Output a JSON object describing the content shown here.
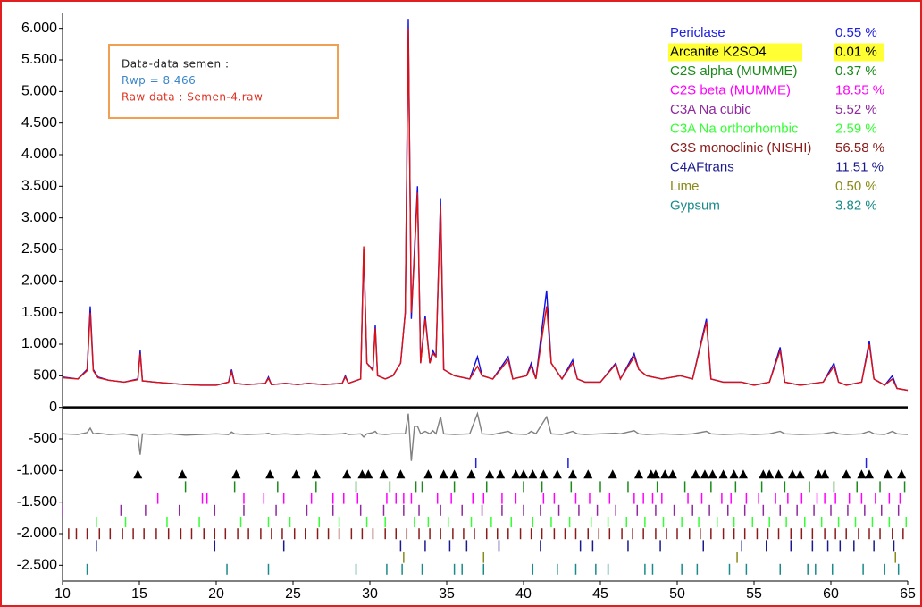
{
  "chart_data": {
    "type": "line",
    "annotations": [
      {
        "text": "Data-data semen :",
        "color": "#222222"
      },
      {
        "text": "Rwp =  8.466",
        "color": "#3b86c8"
      },
      {
        "text": "Raw data : Semen-4.raw",
        "color": "#e03020"
      }
    ],
    "x": [
      10,
      11,
      11.6,
      11.8,
      12.0,
      12.3,
      13,
      14,
      14.9,
      15.05,
      15.2,
      16,
      17,
      18,
      19,
      20,
      20.8,
      21.0,
      21.2,
      22,
      23.2,
      23.4,
      23.6,
      24.5,
      25.3,
      26,
      27,
      28.2,
      28.4,
      28.6,
      29.4,
      29.6,
      29.8,
      30.2,
      30.35,
      30.5,
      31.0,
      31.5,
      32.0,
      32.3,
      32.5,
      32.7,
      32.9,
      33.1,
      33.3,
      33.6,
      33.9,
      34.1,
      34.3,
      34.6,
      34.8,
      35.5,
      36.5,
      37.0,
      37.3,
      38,
      39.0,
      39.3,
      40.2,
      40.5,
      40.8,
      41.5,
      41.8,
      42.5,
      43.2,
      43.5,
      44,
      45,
      46.0,
      46.3,
      47.2,
      47.5,
      48,
      49,
      50.2,
      51,
      51.9,
      52.2,
      53,
      54.2,
      55,
      56.0,
      56.7,
      57.0,
      58,
      59.5,
      60.2,
      60.5,
      61,
      62.0,
      62.5,
      62.8,
      63.5,
      64.0,
      64.3,
      65
    ],
    "series": [
      {
        "name": "Observed",
        "color": "#1010e0",
        "values": [
          480,
          450,
          600,
          1600,
          600,
          480,
          430,
          400,
          450,
          900,
          420,
          400,
          380,
          360,
          350,
          350,
          400,
          600,
          380,
          360,
          380,
          480,
          360,
          380,
          360,
          380,
          360,
          380,
          500,
          380,
          450,
          2500,
          700,
          600,
          1300,
          500,
          450,
          500,
          700,
          1500,
          6150,
          1400,
          2500,
          3500,
          700,
          1450,
          700,
          900,
          800,
          3300,
          600,
          500,
          450,
          800,
          500,
          450,
          800,
          450,
          500,
          700,
          450,
          1850,
          700,
          450,
          750,
          450,
          400,
          400,
          700,
          450,
          850,
          600,
          500,
          450,
          500,
          450,
          1400,
          450,
          400,
          400,
          350,
          400,
          950,
          400,
          350,
          400,
          700,
          400,
          350,
          400,
          1050,
          450,
          350,
          500,
          300,
          270
        ]
      },
      {
        "name": "Calculated",
        "color": "#e01010",
        "values": [
          470,
          450,
          580,
          1500,
          580,
          470,
          430,
          400,
          440,
          850,
          420,
          400,
          380,
          360,
          350,
          350,
          400,
          560,
          380,
          360,
          380,
          460,
          360,
          380,
          360,
          380,
          360,
          380,
          480,
          380,
          450,
          2550,
          700,
          580,
          1250,
          500,
          450,
          500,
          700,
          1500,
          6000,
          1500,
          2400,
          3400,
          700,
          1400,
          700,
          850,
          800,
          3200,
          600,
          500,
          450,
          650,
          500,
          450,
          750,
          450,
          500,
          650,
          450,
          1600,
          700,
          450,
          700,
          450,
          400,
          400,
          680,
          450,
          800,
          600,
          500,
          450,
          500,
          450,
          1350,
          450,
          400,
          400,
          350,
          400,
          900,
          400,
          350,
          400,
          650,
          400,
          350,
          400,
          1000,
          450,
          350,
          450,
          300,
          270
        ]
      },
      {
        "name": "Difference",
        "color": "#808080",
        "values": [
          -420,
          -430,
          -400,
          -330,
          -420,
          -410,
          -430,
          -420,
          -450,
          -750,
          -420,
          -430,
          -420,
          -440,
          -430,
          -420,
          -430,
          -390,
          -420,
          -430,
          -420,
          -410,
          -430,
          -420,
          -430,
          -420,
          -430,
          -420,
          -410,
          -430,
          -420,
          -470,
          -420,
          -400,
          -380,
          -420,
          -430,
          -420,
          -420,
          -420,
          -100,
          -850,
          -300,
          -300,
          -420,
          -380,
          -420,
          -370,
          -420,
          -150,
          -420,
          -430,
          -420,
          -100,
          -420,
          -430,
          -380,
          -420,
          -430,
          -380,
          -420,
          -150,
          -420,
          -430,
          -380,
          -420,
          -430,
          -420,
          -410,
          -420,
          -370,
          -420,
          -430,
          -420,
          -430,
          -420,
          -380,
          -420,
          -430,
          -420,
          -430,
          -420,
          -380,
          -420,
          -430,
          -420,
          -390,
          -420,
          -430,
          -420,
          -380,
          -420,
          -430,
          -380,
          -420,
          -430
        ]
      }
    ],
    "phases": [
      {
        "name": "Periclase",
        "color": "#2020e0",
        "weight_percent": 0.55,
        "weight_label": "0.55 %",
        "reflections": [
          36.9,
          42.9,
          62.3
        ]
      },
      {
        "name": "Arcanite K2SO4",
        "color": "#000000",
        "weight_percent": 0.01,
        "weight_label": "0.01 %",
        "highlight": true,
        "marker": "triangle",
        "reflections": [
          14.9,
          17.8,
          21.3,
          23.5,
          25.2,
          26.5,
          28.5,
          29.5,
          29.9,
          30.9,
          32.0,
          33.8,
          34.8,
          35.5,
          36.6,
          37.8,
          38.5,
          39.5,
          40.0,
          40.6,
          41.3,
          42.2,
          43.2,
          44.2,
          45.8,
          47.5,
          48.3,
          48.6,
          49.2,
          49.7,
          51.2,
          51.8,
          52.3,
          53.0,
          53.7,
          54.3,
          55.6,
          56.0,
          56.6,
          57.5,
          58.0,
          59.2,
          59.6,
          61.0,
          62.0,
          62.5,
          63.7,
          64.6
        ]
      },
      {
        "name": "C2S alpha (MUMME)",
        "color": "#1a8a1a",
        "weight_percent": 0.37,
        "weight_label": "0.37 %",
        "reflections": [
          18.0,
          21.2,
          24.0,
          26.5,
          29.1,
          31.3,
          33.0,
          33.4,
          35.5,
          37.6,
          40.0,
          41.2,
          43.1,
          45.0,
          46.8,
          48.7,
          50.5,
          52.2,
          53.8,
          55.5,
          57.0,
          58.6,
          60.2,
          61.7,
          63.2,
          64.8
        ]
      },
      {
        "name": "C2S beta (MUMME)",
        "color": "#ff00ff",
        "weight_percent": 18.55,
        "weight_label": "18.55 %",
        "reflections": [
          16.2,
          19.1,
          19.4,
          21.8,
          23.1,
          24.4,
          26.2,
          27.6,
          28.3,
          29.2,
          31.1,
          31.7,
          32.2,
          32.7,
          34.4,
          35.3,
          36.7,
          37.4,
          38.6,
          39.5,
          41.3,
          42.0,
          43.4,
          44.3,
          45.6,
          47.2,
          47.8,
          48.4,
          49.0,
          50.7,
          51.6,
          52.9,
          53.5,
          54.5,
          55.3,
          56.4,
          57.2,
          58.1,
          59.1,
          59.6,
          60.3,
          61.2,
          62.0,
          62.9,
          63.8,
          64.5
        ]
      },
      {
        "name": "C3A Na cubic",
        "color": "#8e2a9e",
        "weight_percent": 5.52,
        "weight_label": "5.52 %",
        "reflections": [
          10.0,
          13.8,
          15.4,
          17.6,
          19.9,
          21.8,
          23.9,
          25.9,
          27.6,
          29.4,
          30.9,
          32.2,
          33.2,
          34.6,
          36.0,
          37.3,
          38.6,
          40.0,
          41.1,
          42.3,
          43.6,
          44.8,
          46.0,
          47.4,
          48.6,
          49.8,
          51.0,
          52.1,
          53.3,
          54.4,
          55.6,
          56.7,
          57.8,
          58.9,
          60.0,
          61.1,
          62.2,
          63.3,
          64.4
        ]
      },
      {
        "name": "C3A Na orthorhombic",
        "color": "#33ff33",
        "weight_percent": 2.59,
        "weight_label": "2.59 %",
        "reflections": [
          12.2,
          14.1,
          16.8,
          18.9,
          21.6,
          23.4,
          24.8,
          26.7,
          28.0,
          29.8,
          31.0,
          32.9,
          33.8,
          35.1,
          36.6,
          37.9,
          39.2,
          40.6,
          41.8,
          43.0,
          44.4,
          45.5,
          46.7,
          47.9,
          49.1,
          50.3,
          51.4,
          52.6,
          53.7,
          54.9,
          56.0,
          57.1,
          58.3,
          59.4,
          60.5,
          61.6,
          62.7,
          63.8,
          64.9
        ]
      },
      {
        "name": "C3S monoclinic (NISHI)",
        "color": "#8b1a1a",
        "weight_percent": 56.58,
        "weight_label": "56.58 %",
        "reflections": [
          10.4,
          10.9,
          11.6,
          12.4,
          13.1,
          13.9,
          14.6,
          15.3,
          16.1,
          16.9,
          17.7,
          18.4,
          19.2,
          19.9,
          20.6,
          21.4,
          22.1,
          22.9,
          23.6,
          24.3,
          25.1,
          25.8,
          26.6,
          27.3,
          28.0,
          28.8,
          29.5,
          30.2,
          31.0,
          31.7,
          32.4,
          33.2,
          33.9,
          34.6,
          35.4,
          36.1,
          36.8,
          37.6,
          38.3,
          39.0,
          39.8,
          40.5,
          41.2,
          42.0,
          42.7,
          43.4,
          44.2,
          44.9,
          45.6,
          46.4,
          47.1,
          47.8,
          48.6,
          49.3,
          50.0,
          50.8,
          51.5,
          52.2,
          53.0,
          53.7,
          54.4,
          55.2,
          55.9,
          56.6,
          57.4,
          58.1,
          58.8,
          59.6,
          60.3,
          61.0,
          61.8,
          62.5,
          63.2,
          64.0,
          64.7
        ]
      },
      {
        "name": "C4AFtrans",
        "color": "#1a1a8e",
        "weight_percent": 11.51,
        "weight_label": "11.51 %",
        "reflections": [
          12.2,
          19.9,
          24.4,
          32.0,
          33.6,
          35.2,
          36.3,
          38.4,
          41.1,
          43.7,
          44.5,
          46.8,
          48.9,
          51.7,
          54.2,
          55.8,
          57.4,
          58.8,
          59.8,
          60.6,
          61.5,
          62.8,
          64.1
        ]
      },
      {
        "name": "Lime",
        "color": "#8a8a1a",
        "weight_percent": 0.5,
        "weight_label": "0.50 %",
        "reflections": [
          32.2,
          37.4,
          53.9,
          64.2
        ]
      },
      {
        "name": "Gypsum",
        "color": "#1a8a8a",
        "weight_percent": 3.82,
        "weight_label": "3.82 %",
        "reflections": [
          11.6,
          20.7,
          23.4,
          29.1,
          31.1,
          32.1,
          33.4,
          35.5,
          36.0,
          37.4,
          40.6,
          42.2,
          43.4,
          44.7,
          45.5,
          47.9,
          48.4,
          50.3,
          51.3,
          53.4,
          54.5,
          56.7,
          58.5,
          59.0,
          60.1,
          62.1,
          63.5,
          64.4
        ]
      }
    ],
    "xlim": [
      10,
      65
    ],
    "xticks": [
      10,
      15,
      20,
      25,
      30,
      35,
      40,
      45,
      50,
      55,
      60,
      65
    ],
    "ylim": [
      -2750,
      6250
    ],
    "yticks": [
      {
        "value": 6000,
        "label": "6.000"
      },
      {
        "value": 5500,
        "label": "5.500"
      },
      {
        "value": 5000,
        "label": "5.000"
      },
      {
        "value": 4500,
        "label": "4.500"
      },
      {
        "value": 4000,
        "label": "4.000"
      },
      {
        "value": 3500,
        "label": "3.500"
      },
      {
        "value": 3000,
        "label": "3.000"
      },
      {
        "value": 2500,
        "label": "2.500"
      },
      {
        "value": 2000,
        "label": "2.000"
      },
      {
        "value": 1500,
        "label": "1.500"
      },
      {
        "value": 1000,
        "label": "1.000"
      },
      500,
      0,
      -500,
      {
        "value": -1000,
        "label": "-1.000"
      },
      {
        "value": -1500,
        "label": "-1.500"
      },
      {
        "value": -2000,
        "label": "-2.000"
      },
      {
        "value": -2500,
        "label": "-2.500"
      }
    ],
    "grid": false
  }
}
